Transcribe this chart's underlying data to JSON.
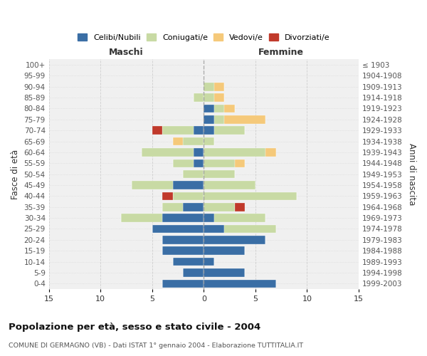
{
  "age_groups": [
    "100+",
    "95-99",
    "90-94",
    "85-89",
    "80-84",
    "75-79",
    "70-74",
    "65-69",
    "60-64",
    "55-59",
    "50-54",
    "45-49",
    "40-44",
    "35-39",
    "30-34",
    "25-29",
    "20-24",
    "15-19",
    "10-14",
    "5-9",
    "0-4"
  ],
  "birth_years": [
    "≤ 1903",
    "1904-1908",
    "1909-1913",
    "1914-1918",
    "1919-1923",
    "1924-1928",
    "1929-1933",
    "1934-1938",
    "1939-1943",
    "1944-1948",
    "1949-1953",
    "1954-1958",
    "1959-1963",
    "1964-1968",
    "1969-1973",
    "1974-1978",
    "1979-1983",
    "1984-1988",
    "1989-1993",
    "1994-1998",
    "1999-2003"
  ],
  "maschi": {
    "celibi": [
      0,
      0,
      0,
      0,
      0,
      0,
      1,
      0,
      1,
      1,
      0,
      3,
      0,
      2,
      4,
      5,
      4,
      4,
      3,
      2,
      4
    ],
    "coniugati": [
      0,
      0,
      0,
      1,
      0,
      0,
      3,
      2,
      5,
      2,
      2,
      4,
      3,
      2,
      4,
      0,
      0,
      0,
      0,
      0,
      0
    ],
    "vedovi": [
      0,
      0,
      0,
      0,
      0,
      0,
      0,
      1,
      0,
      0,
      0,
      0,
      0,
      0,
      0,
      0,
      0,
      0,
      0,
      0,
      0
    ],
    "divorziati": [
      0,
      0,
      0,
      0,
      0,
      0,
      1,
      0,
      0,
      0,
      0,
      0,
      1,
      0,
      0,
      0,
      0,
      0,
      0,
      0,
      0
    ]
  },
  "femmine": {
    "nubili": [
      0,
      0,
      0,
      0,
      1,
      1,
      1,
      0,
      0,
      0,
      0,
      0,
      0,
      0,
      1,
      2,
      6,
      4,
      1,
      4,
      7
    ],
    "coniugate": [
      0,
      0,
      1,
      1,
      1,
      1,
      3,
      1,
      6,
      3,
      3,
      5,
      9,
      3,
      5,
      5,
      0,
      0,
      0,
      0,
      0
    ],
    "vedove": [
      0,
      0,
      1,
      1,
      1,
      4,
      0,
      0,
      1,
      1,
      0,
      0,
      0,
      0,
      0,
      0,
      0,
      0,
      0,
      0,
      0
    ],
    "divorziate": [
      0,
      0,
      0,
      0,
      0,
      0,
      0,
      0,
      0,
      0,
      0,
      0,
      0,
      1,
      0,
      0,
      0,
      0,
      0,
      0,
      0
    ]
  },
  "colors": {
    "celibi_nubili": "#3a6ea5",
    "coniugati": "#c8daa4",
    "vedovi": "#f5c97a",
    "divorziati": "#c0392b"
  },
  "xlim": 15,
  "title": "Popolazione per età, sesso e stato civile - 2004",
  "subtitle": "COMUNE DI GERMAGNO (VB) - Dati ISTAT 1° gennaio 2004 - Elaborazione TUTTITALIA.IT",
  "ylabel_left": "Fasce di età",
  "ylabel_right": "Anni di nascita",
  "xlabel_maschi": "Maschi",
  "xlabel_femmine": "Femmine",
  "bg_color": "#ffffff",
  "plot_bg": "#f0f0f0",
  "grid_color": "#cccccc"
}
